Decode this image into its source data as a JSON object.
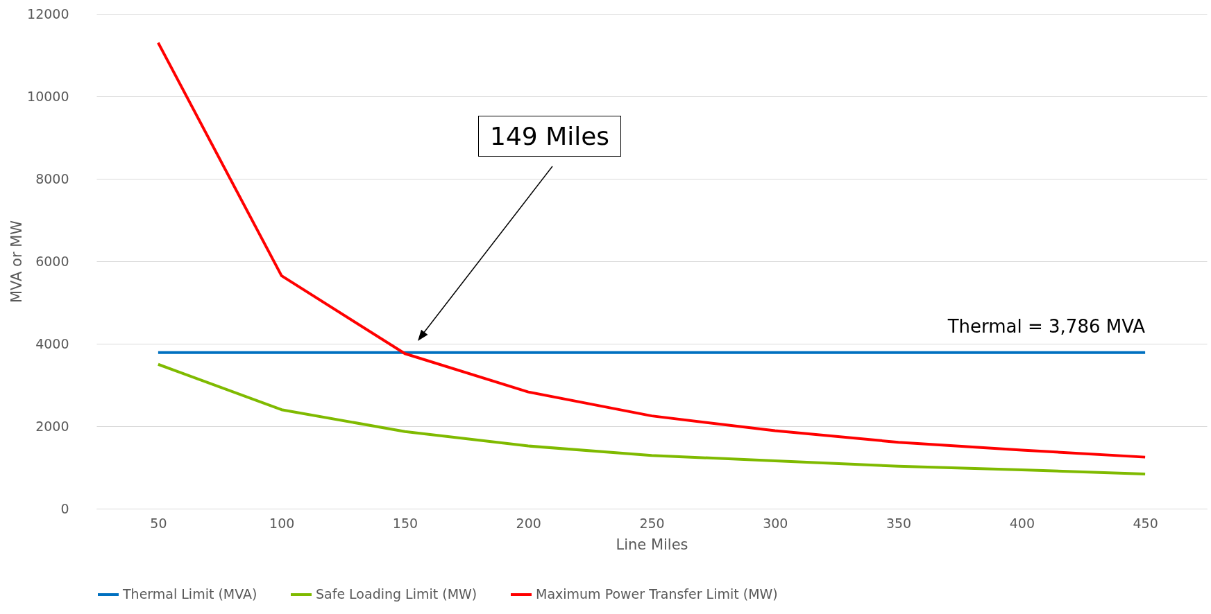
{
  "chart_data": {
    "type": "line",
    "xlabel": "Line Miles",
    "ylabel": "MVA or MW",
    "categories": [
      "50",
      "100",
      "150",
      "200",
      "250",
      "300",
      "350",
      "400",
      "450"
    ],
    "ylim": [
      0,
      12000
    ],
    "yticks": [
      0,
      2000,
      4000,
      6000,
      8000,
      10000,
      12000
    ],
    "grid": "y",
    "legend": "bottom",
    "line_style": "solid",
    "series": [
      {
        "name": "Thermal Limit (MVA)",
        "color": "#0070c0",
        "values": [
          3786,
          3786,
          3786,
          3786,
          3786,
          3786,
          3786,
          3786,
          3786
        ]
      },
      {
        "name": "Safe Loading Limit (MW)",
        "color": "#7fba00",
        "values": [
          3500,
          2400,
          1870,
          1520,
          1290,
          1160,
          1030,
          940,
          840
        ]
      },
      {
        "name": "Maximum Power Transfer Limit (MW)",
        "color": "#ff0000",
        "values": [
          11300,
          5650,
          3760,
          2830,
          2250,
          1890,
          1610,
          1420,
          1250
        ]
      }
    ],
    "annotations": [
      "149 Miles",
      {
        "text": "Thermal = 3,786 MVA",
        "x": "450",
        "y": 3786
      }
    ]
  }
}
